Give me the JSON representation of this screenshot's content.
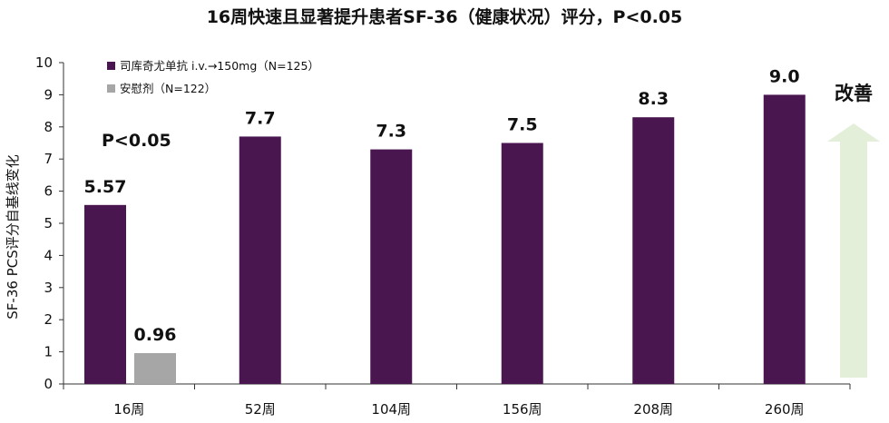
{
  "chart_data": {
    "type": "bar",
    "title": "16周快速且显著提升患者SF-36（健康状况）评分，P<0.05",
    "ylabel": "SF-36 PCS评分自基线变化",
    "xlabel": "",
    "ylim": [
      0,
      10
    ],
    "yticks": [
      "0",
      "1",
      "2",
      "3",
      "4",
      "5",
      "6",
      "7",
      "8",
      "9",
      "10"
    ],
    "categories": [
      "16周",
      "52周",
      "104周",
      "156周",
      "208周",
      "260周"
    ],
    "series": [
      {
        "name": "司库奇尤单抗 i.v.→150mg（N=125）",
        "color": "#4a1650",
        "values": [
          5.57,
          7.7,
          7.3,
          7.5,
          8.3,
          9.0
        ],
        "labels": [
          "5.57",
          "7.7",
          "7.3",
          "7.5",
          "8.3",
          "9.0"
        ]
      },
      {
        "name": "安慰剂（N=122）",
        "color": "#a6a6a6",
        "values": [
          0.96,
          null,
          null,
          null,
          null,
          null
        ],
        "labels": [
          "0.96",
          "",
          "",
          "",
          "",
          ""
        ]
      }
    ],
    "legend": "top-left",
    "annotations": [
      {
        "text": "P<0.05",
        "category": "16周"
      },
      {
        "text": "改善",
        "arrow_color": "#e3efd9"
      }
    ]
  }
}
